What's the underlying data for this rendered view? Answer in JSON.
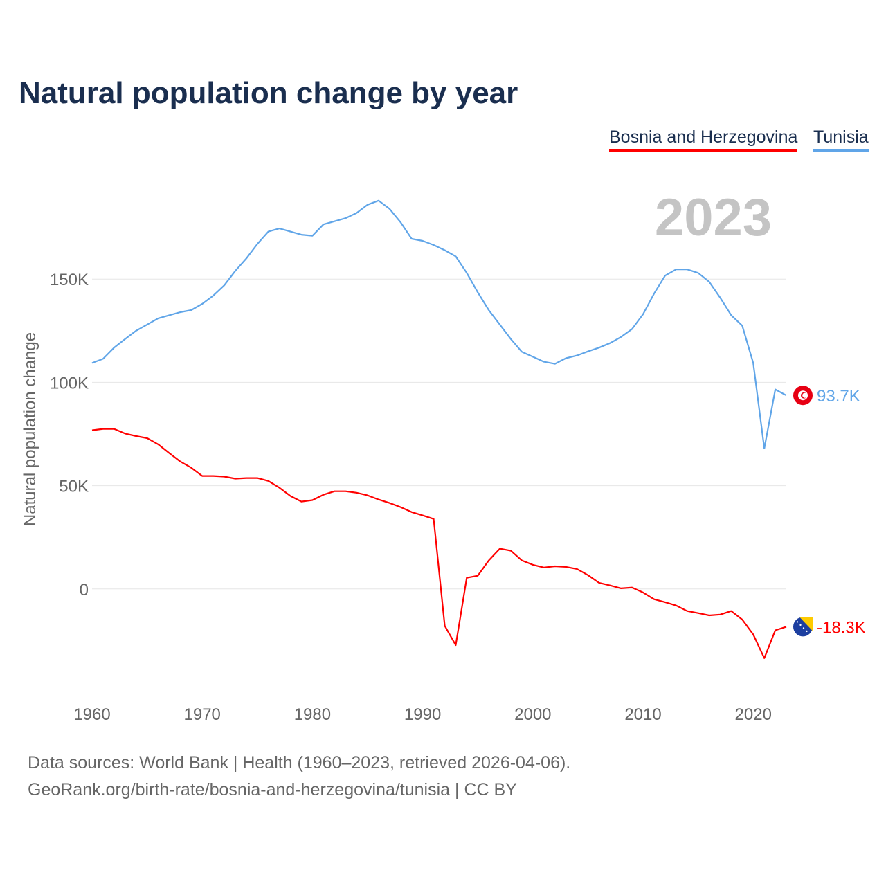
{
  "chart_data": {
    "type": "line",
    "title": "Natural population change by year",
    "ylabel": "Natural population change",
    "xlabel": "",
    "year_label": "2023",
    "ylim": [
      -50,
      198
    ],
    "xlim": [
      1960,
      2023
    ],
    "yticks": [
      {
        "v": 0,
        "label": "0"
      },
      {
        "v": 50,
        "label": "50K"
      },
      {
        "v": 100,
        "label": "100K"
      },
      {
        "v": 150,
        "label": "150K"
      }
    ],
    "xticks": [
      1960,
      1970,
      1980,
      1990,
      2000,
      2010,
      2020
    ],
    "grid": true,
    "legend_position": "top-right",
    "x_start": 1960,
    "series": [
      {
        "name": "Bosnia and Herzegovina",
        "color": "#ff0000",
        "end_label": "-18.3K",
        "flag": "bosnia-flag",
        "values": [
          76.8,
          77.5,
          77.5,
          75.2,
          74,
          73,
          70,
          65.8,
          61.7,
          58.7,
          54.7,
          54.7,
          54.4,
          53.4,
          53.7,
          53.7,
          52.3,
          49,
          45,
          42.3,
          43,
          45.6,
          47.3,
          47.3,
          46.6,
          45.3,
          43.3,
          41.6,
          39.6,
          37.2,
          35.6,
          33.9,
          -17.8,
          -27.2,
          5.4,
          6.4,
          13.8,
          19.5,
          18.5,
          13.8,
          11.7,
          10.4,
          11,
          10.7,
          9.7,
          6.7,
          3,
          1.7,
          0.3,
          0.7,
          -1.7,
          -5,
          -6.4,
          -8,
          -10.7,
          -11.7,
          -12.8,
          -12.4,
          -10.7,
          -14.8,
          -22,
          -33.5,
          -20,
          -18.3
        ]
      },
      {
        "name": "Tunisia",
        "color": "#60a5e8",
        "end_label": "93.7K",
        "flag": "tunisia-flag",
        "values": [
          109.4,
          111.4,
          116.8,
          121,
          125,
          128,
          131,
          132.5,
          134,
          135,
          138,
          142,
          147,
          154,
          160,
          167,
          173,
          174.5,
          173,
          171.5,
          171,
          176.5,
          178,
          179.5,
          182,
          186,
          188,
          184,
          177.5,
          169.5,
          168.5,
          166.5,
          164,
          161,
          153,
          143.6,
          135,
          128,
          121,
          114.8,
          112.4,
          110,
          109,
          111.7,
          113,
          115,
          116.8,
          119,
          122,
          125.8,
          133,
          143,
          151.7,
          154.7,
          154.7,
          153,
          148.7,
          141,
          132.5,
          127.5,
          109.4,
          68,
          96.6,
          93.7
        ]
      }
    ]
  },
  "footer": {
    "line1": "Data sources: World Bank | Health (1960–2023, retrieved 2026-04-06).",
    "line2": "GeoRank.org/birth-rate/bosnia-and-herzegovina/tunisia | CC BY"
  }
}
